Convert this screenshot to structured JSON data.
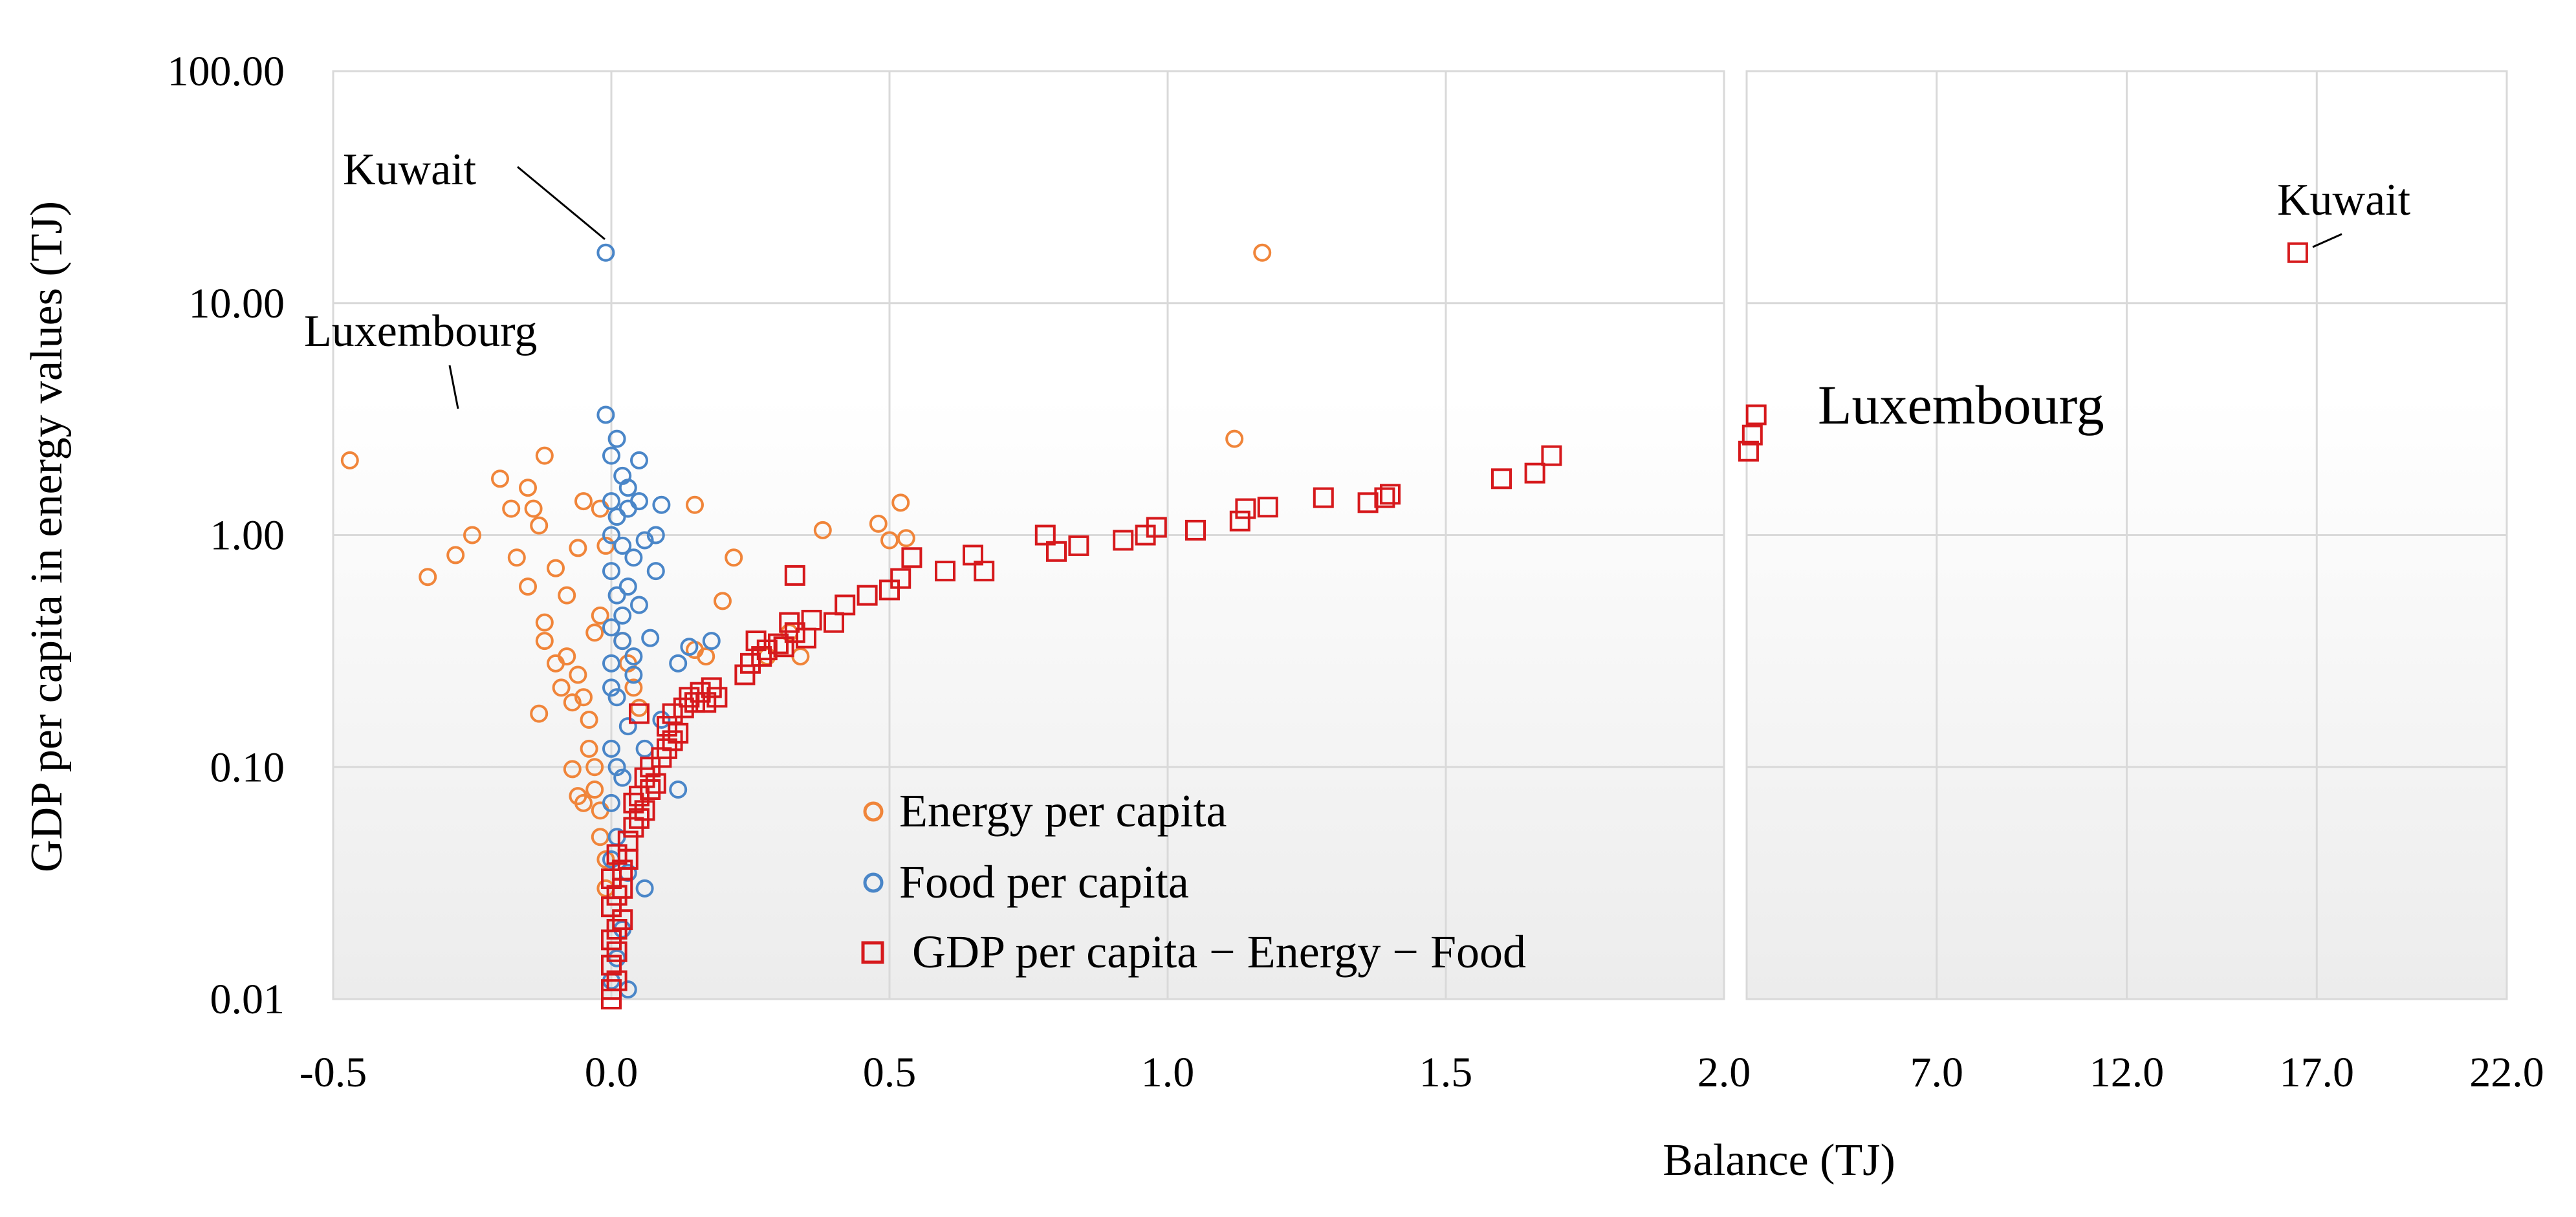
{
  "chart_data": {
    "type": "scatter",
    "title": "",
    "xlabel": "Balance (TJ)",
    "ylabel": "GDP per capita in energy values (TJ)",
    "y_scale": "log",
    "ylim": [
      0.01,
      100
    ],
    "y_ticks": [
      "100.00",
      "10.00",
      "1.00",
      "0.10",
      "0.01"
    ],
    "left_panel": {
      "xlim": [
        -0.5,
        2.0
      ],
      "x_ticks": [
        "-0.5",
        "0.0",
        "0.5",
        "1.0",
        "1.5",
        "2.0"
      ]
    },
    "right_panel": {
      "xlim": [
        2.0,
        22.0
      ],
      "x_ticks": [
        "7.0",
        "12.0",
        "17.0",
        "22.0"
      ]
    },
    "series": [
      {
        "name": "Energy per capita",
        "color": "#f0853a",
        "marker": "circle",
        "points": [
          [
            -0.47,
            2.1
          ],
          [
            -0.33,
            0.66
          ],
          [
            -0.28,
            0.82
          ],
          [
            -0.25,
            1.0
          ],
          [
            -0.2,
            1.75
          ],
          [
            -0.18,
            1.3
          ],
          [
            -0.17,
            0.8
          ],
          [
            -0.15,
            1.6
          ],
          [
            -0.14,
            1.3
          ],
          [
            -0.13,
            1.1
          ],
          [
            -0.12,
            2.2
          ],
          [
            -0.15,
            0.6
          ],
          [
            -0.12,
            0.42
          ],
          [
            -0.1,
            0.72
          ],
          [
            -0.08,
            0.55
          ],
          [
            -0.06,
            0.88
          ],
          [
            -0.05,
            1.4
          ],
          [
            -0.12,
            0.35
          ],
          [
            -0.1,
            0.28
          ],
          [
            -0.09,
            0.22
          ],
          [
            -0.07,
            0.19
          ],
          [
            -0.08,
            0.3
          ],
          [
            -0.06,
            0.25
          ],
          [
            -0.05,
            0.2
          ],
          [
            -0.04,
            0.16
          ],
          [
            -0.04,
            0.12
          ],
          [
            -0.03,
            0.1
          ],
          [
            -0.03,
            0.08
          ],
          [
            -0.05,
            0.07
          ],
          [
            -0.02,
            0.065
          ],
          [
            -0.02,
            0.05
          ],
          [
            -0.01,
            0.04
          ],
          [
            -0.01,
            0.03
          ],
          [
            -0.02,
            0.45
          ],
          [
            -0.03,
            0.38
          ],
          [
            -0.13,
            0.17
          ],
          [
            -0.07,
            0.098
          ],
          [
            -0.06,
            0.075
          ],
          [
            -0.02,
            1.3
          ],
          [
            -0.01,
            0.9
          ],
          [
            0.02,
            0.35
          ],
          [
            0.03,
            0.28
          ],
          [
            0.04,
            0.22
          ],
          [
            0.05,
            0.18
          ],
          [
            0.15,
            1.35
          ],
          [
            0.2,
            0.52
          ],
          [
            0.22,
            0.8
          ],
          [
            0.15,
            0.32
          ],
          [
            0.17,
            0.3
          ],
          [
            0.28,
            0.3
          ],
          [
            0.32,
            0.38
          ],
          [
            0.34,
            0.3
          ],
          [
            0.38,
            1.05
          ],
          [
            0.48,
            1.12
          ],
          [
            0.5,
            0.95
          ],
          [
            0.52,
            1.38
          ],
          [
            0.53,
            0.97
          ],
          [
            1.12,
            2.6
          ],
          [
            1.17,
            16.5
          ]
        ]
      },
      {
        "name": "Food per capita",
        "color": "#4a86c8",
        "marker": "circle",
        "points": [
          [
            -0.01,
            16.5
          ],
          [
            -0.01,
            3.3
          ],
          [
            0.0,
            2.2
          ],
          [
            0.01,
            2.6
          ],
          [
            0.02,
            1.8
          ],
          [
            0.03,
            1.6
          ],
          [
            0.05,
            2.1
          ],
          [
            0.0,
            1.4
          ],
          [
            0.01,
            1.2
          ],
          [
            0.03,
            1.3
          ],
          [
            0.05,
            1.4
          ],
          [
            0.08,
            1.0
          ],
          [
            0.09,
            1.35
          ],
          [
            0.0,
            1.0
          ],
          [
            0.02,
            0.9
          ],
          [
            0.04,
            0.8
          ],
          [
            0.06,
            0.95
          ],
          [
            0.08,
            0.7
          ],
          [
            0.0,
            0.7
          ],
          [
            0.01,
            0.55
          ],
          [
            0.03,
            0.6
          ],
          [
            0.05,
            0.5
          ],
          [
            0.0,
            0.4
          ],
          [
            0.02,
            0.35
          ],
          [
            0.04,
            0.3
          ],
          [
            0.07,
            0.36
          ],
          [
            0.12,
            0.28
          ],
          [
            0.14,
            0.33
          ],
          [
            0.18,
            0.35
          ],
          [
            0.0,
            0.28
          ],
          [
            0.01,
            0.2
          ],
          [
            0.03,
            0.15
          ],
          [
            0.0,
            0.12
          ],
          [
            0.01,
            0.1
          ],
          [
            0.02,
            0.09
          ],
          [
            0.0,
            0.07
          ],
          [
            0.01,
            0.05
          ],
          [
            0.0,
            0.04
          ],
          [
            0.03,
            0.035
          ],
          [
            0.06,
            0.03
          ],
          [
            0.02,
            0.02
          ],
          [
            0.01,
            0.015
          ],
          [
            0.0,
            0.012
          ],
          [
            0.03,
            0.011
          ],
          [
            0.12,
            0.08
          ],
          [
            0.09,
            0.16
          ],
          [
            0.06,
            0.12
          ],
          [
            0.04,
            0.25
          ],
          [
            0.0,
            0.22
          ],
          [
            0.02,
            0.45
          ]
        ]
      },
      {
        "name": "GDP per capita − Energy − Food",
        "color": "#d6191c",
        "marker": "square",
        "points": [
          [
            0.0,
            0.01
          ],
          [
            0.0,
            0.011
          ],
          [
            0.01,
            0.012
          ],
          [
            0.0,
            0.014
          ],
          [
            0.01,
            0.016
          ],
          [
            0.0,
            0.018
          ],
          [
            0.01,
            0.02
          ],
          [
            0.02,
            0.022
          ],
          [
            0.0,
            0.025
          ],
          [
            0.01,
            0.028
          ],
          [
            0.02,
            0.03
          ],
          [
            0.0,
            0.033
          ],
          [
            0.02,
            0.036
          ],
          [
            0.03,
            0.04
          ],
          [
            0.01,
            0.042
          ],
          [
            0.03,
            0.048
          ],
          [
            0.04,
            0.055
          ],
          [
            0.05,
            0.06
          ],
          [
            0.06,
            0.065
          ],
          [
            0.04,
            0.07
          ],
          [
            0.05,
            0.075
          ],
          [
            0.07,
            0.08
          ],
          [
            0.08,
            0.085
          ],
          [
            0.06,
            0.09
          ],
          [
            0.07,
            0.1
          ],
          [
            0.09,
            0.11
          ],
          [
            0.1,
            0.12
          ],
          [
            0.11,
            0.13
          ],
          [
            0.12,
            0.14
          ],
          [
            0.1,
            0.15
          ],
          [
            0.11,
            0.17
          ],
          [
            0.13,
            0.18
          ],
          [
            0.15,
            0.19
          ],
          [
            0.14,
            0.2
          ],
          [
            0.16,
            0.21
          ],
          [
            0.18,
            0.22
          ],
          [
            0.17,
            0.19
          ],
          [
            0.19,
            0.2
          ],
          [
            0.05,
            0.17
          ],
          [
            0.24,
            0.25
          ],
          [
            0.25,
            0.28
          ],
          [
            0.27,
            0.3
          ],
          [
            0.28,
            0.32
          ],
          [
            0.3,
            0.34
          ],
          [
            0.26,
            0.35
          ],
          [
            0.31,
            0.33
          ],
          [
            0.33,
            0.38
          ],
          [
            0.35,
            0.36
          ],
          [
            0.32,
            0.42
          ],
          [
            0.33,
            0.67
          ],
          [
            0.36,
            0.43
          ],
          [
            0.4,
            0.42
          ],
          [
            0.42,
            0.5
          ],
          [
            0.46,
            0.55
          ],
          [
            0.5,
            0.58
          ],
          [
            0.52,
            0.65
          ],
          [
            0.54,
            0.8
          ],
          [
            0.6,
            0.7
          ],
          [
            0.65,
            0.82
          ],
          [
            0.67,
            0.7
          ],
          [
            0.78,
            1.0
          ],
          [
            0.8,
            0.85
          ],
          [
            0.84,
            0.9
          ],
          [
            0.92,
            0.95
          ],
          [
            0.96,
            1.0
          ],
          [
            0.98,
            1.08
          ],
          [
            1.05,
            1.05
          ],
          [
            1.13,
            1.15
          ],
          [
            1.14,
            1.3
          ],
          [
            1.18,
            1.32
          ],
          [
            1.28,
            1.45
          ],
          [
            1.36,
            1.38
          ],
          [
            1.39,
            1.45
          ],
          [
            1.4,
            1.5
          ],
          [
            1.6,
            1.75
          ],
          [
            1.66,
            1.85
          ],
          [
            1.69,
            2.2
          ],
          [
            2.05,
            2.3
          ],
          [
            2.15,
            2.7
          ],
          [
            2.25,
            3.3
          ],
          [
            16.5,
            16.5
          ]
        ]
      }
    ],
    "annotations": [
      {
        "text": "Kuwait",
        "panel": "left",
        "x": -0.01,
        "y": 16.5
      },
      {
        "text": "Luxembourg",
        "panel": "left",
        "x": -0.27,
        "y": 3.3
      },
      {
        "text": "Kuwait",
        "panel": "right",
        "x": 16.5,
        "y": 16.5
      },
      {
        "text": "Luxembourg",
        "panel": "right",
        "x": 2.25,
        "y": 3.3
      }
    ],
    "legend_location": "bottom-center"
  }
}
